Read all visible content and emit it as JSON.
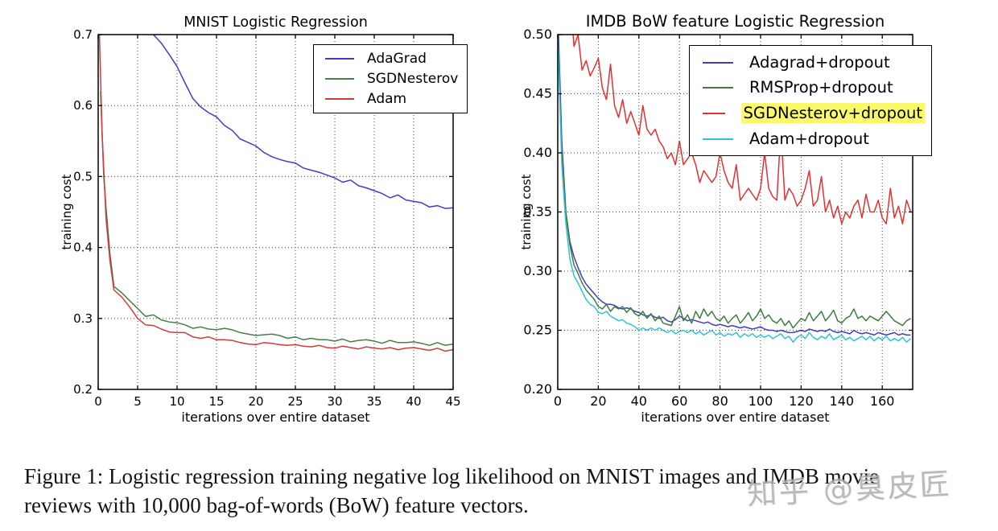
{
  "figure": {
    "caption_lines": [
      "Figure 1: Logistic regression training negative log likelihood on MNIST images and IMDB movie",
      "reviews with 10,000 bag-of-words (BoW) feature vectors."
    ]
  },
  "watermark": {
    "text": "知乎 @臭皮匠"
  },
  "colors": {
    "axis": "#000000",
    "grid": "#444444",
    "highlight": "#f9f96a"
  },
  "chart_data": [
    {
      "type": "line",
      "title": "MNIST Logistic Regression",
      "xlabel": "iterations over entire dataset",
      "ylabel": "training cost",
      "xlim": [
        0,
        45
      ],
      "ylim": [
        0.2,
        0.7
      ],
      "grid": true,
      "legend_position": "upper right",
      "xticks": {
        "values": [
          0,
          5,
          10,
          15,
          20,
          25,
          30,
          35,
          40,
          45
        ],
        "labels": [
          "0",
          "5",
          "10",
          "15",
          "20",
          "25",
          "30",
          "35",
          "40",
          "45"
        ]
      },
      "yticks": {
        "values": [
          0.2,
          0.3,
          0.4,
          0.5,
          0.6,
          0.7
        ],
        "labels": [
          "0.2",
          "0.3",
          "0.4",
          "0.5",
          "0.6",
          "0.7"
        ]
      },
      "series": [
        {
          "name": "AdaGrad",
          "color": "#3f3fbf",
          "highlight": false,
          "x": [
            7,
            8,
            9,
            10,
            11,
            12,
            13,
            14,
            15,
            16,
            17,
            18,
            19,
            20,
            21,
            22,
            23,
            24,
            25,
            26,
            27,
            28,
            29,
            30,
            31,
            32,
            33,
            34,
            35,
            36,
            37,
            38,
            39,
            40,
            41,
            42,
            43,
            44,
            45
          ],
          "values": [
            0.7,
            0.688,
            0.672,
            0.655,
            0.632,
            0.61,
            0.598,
            0.59,
            0.584,
            0.572,
            0.565,
            0.553,
            0.548,
            0.543,
            0.534,
            0.528,
            0.524,
            0.521,
            0.519,
            0.512,
            0.509,
            0.506,
            0.502,
            0.498,
            0.492,
            0.495,
            0.487,
            0.484,
            0.48,
            0.476,
            0.47,
            0.474,
            0.467,
            0.465,
            0.463,
            0.457,
            0.459,
            0.455,
            0.456
          ]
        },
        {
          "name": "SGDNesterov",
          "color": "#4a7d4a",
          "highlight": false,
          "x": [
            0.3,
            0.7,
            1,
            1.5,
            2,
            3,
            4,
            5,
            6,
            7,
            8,
            9,
            10,
            11,
            12,
            13,
            14,
            15,
            16,
            17,
            18,
            19,
            20,
            21,
            22,
            23,
            24,
            25,
            26,
            27,
            28,
            29,
            30,
            31,
            32,
            33,
            34,
            35,
            36,
            37,
            38,
            39,
            40,
            41,
            42,
            43,
            44,
            45
          ],
          "values": [
            0.62,
            0.5,
            0.455,
            0.39,
            0.345,
            0.336,
            0.325,
            0.314,
            0.303,
            0.305,
            0.298,
            0.295,
            0.294,
            0.291,
            0.286,
            0.288,
            0.285,
            0.284,
            0.286,
            0.284,
            0.28,
            0.278,
            0.276,
            0.277,
            0.278,
            0.276,
            0.272,
            0.274,
            0.27,
            0.272,
            0.27,
            0.27,
            0.268,
            0.271,
            0.267,
            0.269,
            0.27,
            0.268,
            0.265,
            0.269,
            0.266,
            0.266,
            0.267,
            0.265,
            0.262,
            0.266,
            0.262,
            0.264
          ]
        },
        {
          "name": "Adam",
          "color": "#d03c3c",
          "highlight": false,
          "x": [
            0.15,
            0.5,
            1,
            1.5,
            2,
            3,
            4,
            5,
            6,
            7,
            8,
            9,
            10,
            11,
            12,
            13,
            14,
            15,
            16,
            17,
            18,
            19,
            20,
            21,
            22,
            23,
            24,
            25,
            26,
            27,
            28,
            29,
            30,
            31,
            32,
            33,
            34,
            35,
            36,
            37,
            38,
            39,
            40,
            41,
            42,
            43,
            44,
            45
          ],
          "values": [
            0.7,
            0.56,
            0.44,
            0.38,
            0.34,
            0.33,
            0.316,
            0.3,
            0.291,
            0.29,
            0.285,
            0.281,
            0.28,
            0.28,
            0.274,
            0.272,
            0.274,
            0.27,
            0.27,
            0.269,
            0.266,
            0.264,
            0.263,
            0.266,
            0.265,
            0.263,
            0.262,
            0.263,
            0.261,
            0.26,
            0.262,
            0.259,
            0.258,
            0.261,
            0.259,
            0.257,
            0.26,
            0.258,
            0.257,
            0.259,
            0.256,
            0.258,
            0.259,
            0.257,
            0.255,
            0.258,
            0.254,
            0.256
          ]
        }
      ]
    },
    {
      "type": "line",
      "title": "IMDB BoW feature Logistic Regression",
      "xlabel": "iterations over entire dataset",
      "ylabel": "training cost",
      "xlim": [
        0,
        175
      ],
      "ylim": [
        0.2,
        0.5
      ],
      "grid": true,
      "legend_position": "upper right",
      "xticks": {
        "values": [
          0,
          20,
          40,
          60,
          80,
          100,
          120,
          140,
          160
        ],
        "labels": [
          "0",
          "20",
          "40",
          "60",
          "80",
          "100",
          "120",
          "140",
          "160"
        ]
      },
      "yticks": {
        "values": [
          0.2,
          0.25,
          0.3,
          0.35,
          0.4,
          0.45,
          0.5
        ],
        "labels": [
          "0.20",
          "0.25",
          "0.30",
          "0.35",
          "0.40",
          "0.45",
          "0.50"
        ]
      },
      "series": [
        {
          "name": "Adagrad+dropout",
          "color": "#4040c0",
          "highlight": false,
          "x0": 0,
          "dx": 2,
          "values": [
            0.52,
            0.41,
            0.35,
            0.325,
            0.312,
            0.303,
            0.295,
            0.289,
            0.285,
            0.281,
            0.277,
            0.274,
            0.272,
            0.272,
            0.271,
            0.269,
            0.268,
            0.269,
            0.268,
            0.266,
            0.265,
            0.263,
            0.262,
            0.263,
            0.261,
            0.26,
            0.261,
            0.258,
            0.257,
            0.259,
            0.262,
            0.26,
            0.258,
            0.259,
            0.258,
            0.257,
            0.256,
            0.257,
            0.255,
            0.254,
            0.255,
            0.254,
            0.253,
            0.254,
            0.253,
            0.252,
            0.253,
            0.252,
            0.251,
            0.252,
            0.253,
            0.251,
            0.25,
            0.25,
            0.249,
            0.25,
            0.249,
            0.248,
            0.248,
            0.249,
            0.25,
            0.249,
            0.251,
            0.25,
            0.249,
            0.25,
            0.249,
            0.251,
            0.249,
            0.248,
            0.249,
            0.248,
            0.247,
            0.25,
            0.248,
            0.247,
            0.248,
            0.247,
            0.246,
            0.248,
            0.247,
            0.246,
            0.247,
            0.248,
            0.246,
            0.247,
            0.246,
            0.246
          ]
        },
        {
          "name": "RMSProp+dropout",
          "color": "#3f7d3f",
          "highlight": false,
          "x0": 0,
          "dx": 2,
          "values": [
            0.5,
            0.4,
            0.348,
            0.322,
            0.305,
            0.298,
            0.29,
            0.284,
            0.28,
            0.276,
            0.27,
            0.268,
            0.272,
            0.266,
            0.27,
            0.268,
            0.27,
            0.265,
            0.269,
            0.264,
            0.262,
            0.266,
            0.26,
            0.264,
            0.258,
            0.262,
            0.256,
            0.255,
            0.254,
            0.262,
            0.27,
            0.258,
            0.263,
            0.256,
            0.266,
            0.26,
            0.268,
            0.262,
            0.266,
            0.26,
            0.258,
            0.262,
            0.256,
            0.26,
            0.263,
            0.256,
            0.26,
            0.265,
            0.258,
            0.262,
            0.268,
            0.26,
            0.263,
            0.258,
            0.256,
            0.26,
            0.254,
            0.258,
            0.252,
            0.256,
            0.26,
            0.258,
            0.265,
            0.258,
            0.262,
            0.266,
            0.258,
            0.262,
            0.267,
            0.258,
            0.256,
            0.26,
            0.262,
            0.268,
            0.26,
            0.262,
            0.258,
            0.262,
            0.26,
            0.258,
            0.262,
            0.266,
            0.262,
            0.258,
            0.256,
            0.254,
            0.258,
            0.26
          ]
        },
        {
          "name": "SGDNesterov+dropout",
          "color": "#e03232",
          "highlight": true,
          "x0": 6,
          "dx": 2,
          "values": [
            0.535,
            0.49,
            0.5,
            0.47,
            0.478,
            0.465,
            0.472,
            0.48,
            0.455,
            0.445,
            0.475,
            0.44,
            0.43,
            0.445,
            0.425,
            0.435,
            0.425,
            0.415,
            0.44,
            0.42,
            0.415,
            0.42,
            0.41,
            0.405,
            0.395,
            0.4,
            0.39,
            0.41,
            0.39,
            0.395,
            0.4,
            0.39,
            0.375,
            0.385,
            0.38,
            0.375,
            0.38,
            0.4,
            0.385,
            0.375,
            0.37,
            0.39,
            0.36,
            0.365,
            0.37,
            0.365,
            0.36,
            0.37,
            0.4,
            0.37,
            0.363,
            0.36,
            0.42,
            0.36,
            0.37,
            0.365,
            0.355,
            0.36,
            0.37,
            0.385,
            0.355,
            0.36,
            0.38,
            0.35,
            0.36,
            0.345,
            0.355,
            0.34,
            0.35,
            0.345,
            0.355,
            0.36,
            0.345,
            0.365,
            0.35,
            0.35,
            0.36,
            0.345,
            0.34,
            0.37,
            0.345,
            0.355,
            0.34,
            0.36,
            0.35
          ]
        },
        {
          "name": "Adam+dropout",
          "color": "#2fc2d7",
          "highlight": false,
          "x0": 0,
          "dx": 2,
          "values": [
            0.5,
            0.39,
            0.34,
            0.31,
            0.296,
            0.29,
            0.283,
            0.276,
            0.272,
            0.27,
            0.265,
            0.264,
            0.266,
            0.262,
            0.26,
            0.258,
            0.259,
            0.256,
            0.255,
            0.253,
            0.25,
            0.252,
            0.25,
            0.252,
            0.25,
            0.252,
            0.25,
            0.248,
            0.25,
            0.247,
            0.249,
            0.25,
            0.248,
            0.25,
            0.247,
            0.249,
            0.246,
            0.248,
            0.25,
            0.246,
            0.248,
            0.245,
            0.247,
            0.246,
            0.248,
            0.244,
            0.247,
            0.245,
            0.247,
            0.244,
            0.246,
            0.244,
            0.246,
            0.243,
            0.245,
            0.247,
            0.243,
            0.245,
            0.24,
            0.244,
            0.246,
            0.243,
            0.248,
            0.244,
            0.242,
            0.245,
            0.243,
            0.247,
            0.242,
            0.244,
            0.246,
            0.242,
            0.244,
            0.241,
            0.243,
            0.245,
            0.242,
            0.245,
            0.241,
            0.244,
            0.242,
            0.245,
            0.241,
            0.243,
            0.241,
            0.244,
            0.24,
            0.243
          ]
        }
      ]
    }
  ]
}
